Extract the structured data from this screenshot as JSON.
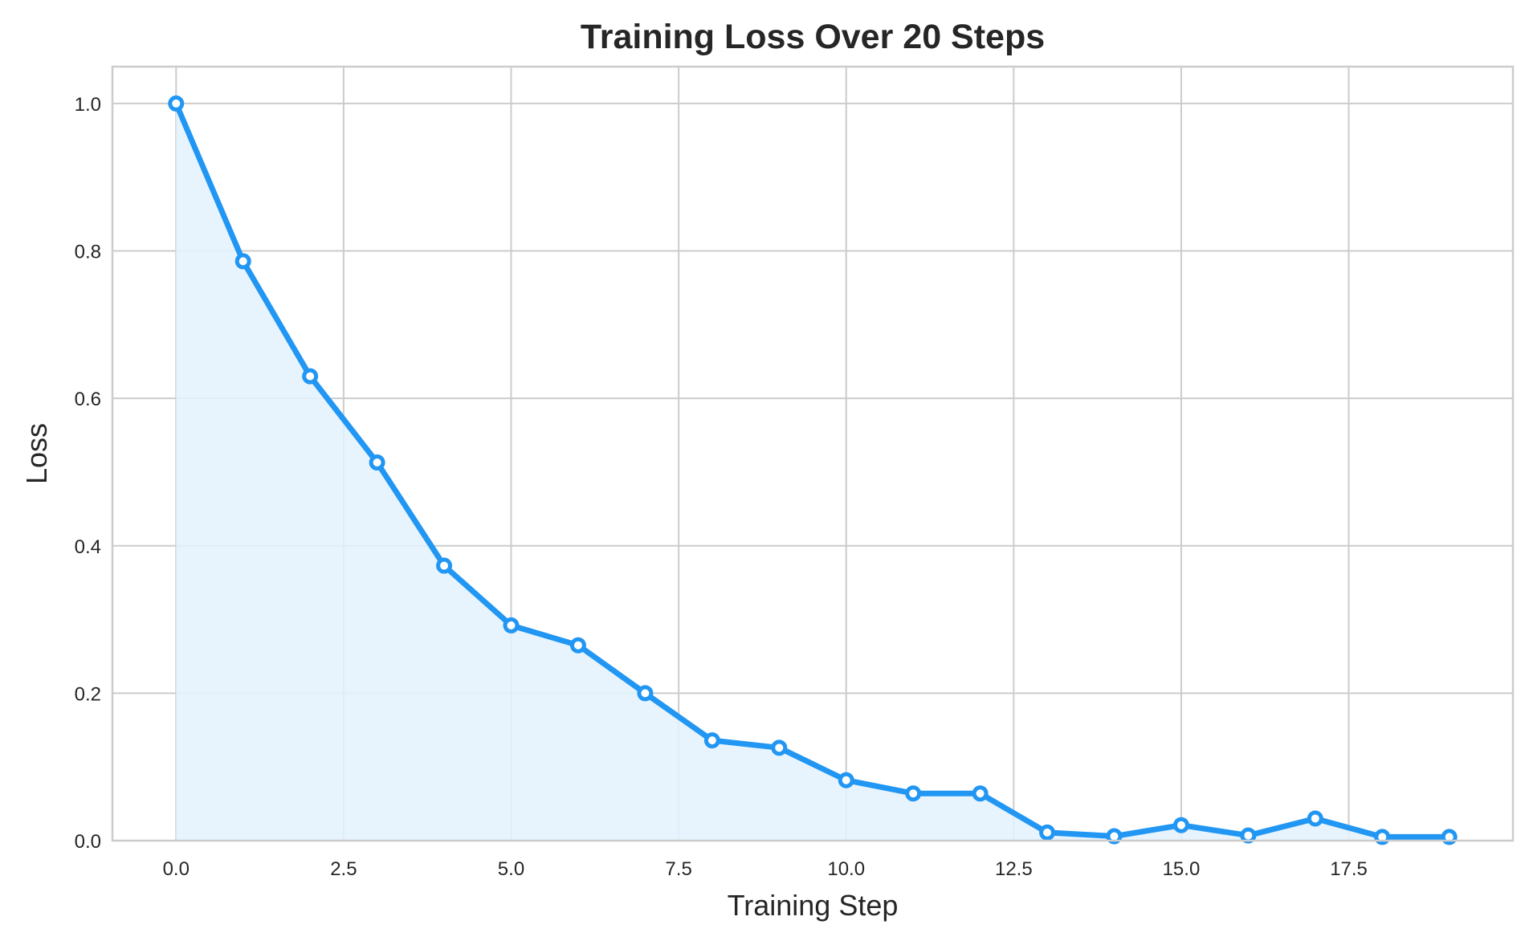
{
  "chart_data": {
    "type": "line",
    "title": "Training Loss Over 20 Steps",
    "xlabel": "Training Step",
    "ylabel": "Loss",
    "x": [
      0,
      1,
      2,
      3,
      4,
      5,
      6,
      7,
      8,
      9,
      10,
      11,
      12,
      13,
      14,
      15,
      16,
      17,
      18,
      19
    ],
    "series": [
      {
        "name": "Loss",
        "values": [
          1.0,
          0.786,
          0.63,
          0.513,
          0.373,
          0.292,
          0.265,
          0.2,
          0.136,
          0.126,
          0.082,
          0.064,
          0.064,
          0.011,
          0.006,
          0.021,
          0.007,
          0.03,
          0.005,
          0.005
        ],
        "color": "#2196F3",
        "fill_color": "#E3F2FD",
        "marker": "circle-hollow",
        "fill_under": true
      }
    ],
    "xticks": [
      "0.0",
      "2.5",
      "5.0",
      "7.5",
      "10.0",
      "12.5",
      "15.0",
      "17.5"
    ],
    "xtick_values": [
      0,
      2.5,
      5,
      7.5,
      10,
      12.5,
      15,
      17.5
    ],
    "yticks": [
      "0.0",
      "0.2",
      "0.4",
      "0.6",
      "0.8",
      "1.0"
    ],
    "ytick_values": [
      0,
      0.2,
      0.4,
      0.6,
      0.8,
      1.0
    ],
    "xlim": [
      -0.95,
      19.95
    ],
    "ylim": [
      0,
      1.05
    ],
    "grid": true,
    "legend": null
  },
  "colors": {
    "grid": "#cccccc",
    "spine": "#cccccc",
    "text": "#262626",
    "background": "#ffffff"
  }
}
